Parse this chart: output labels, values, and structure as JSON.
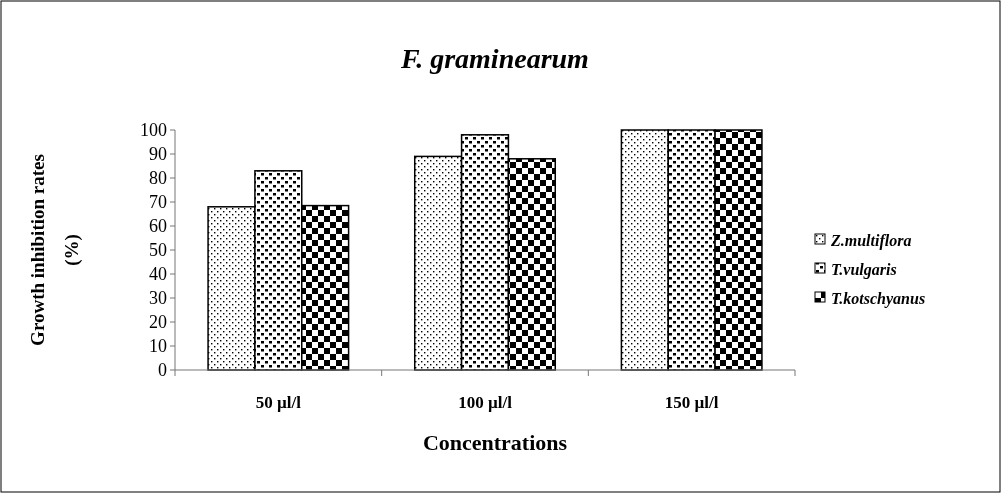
{
  "chart_data": {
    "type": "bar",
    "title": "F. graminearum",
    "xlabel": "Concentrations",
    "ylabel": "Growth inhibition rates (%)",
    "categories": [
      "50 µl/l",
      "100 µl/l",
      "150 µl/l"
    ],
    "series": [
      {
        "name": "Z.multiflora",
        "color": "#000000",
        "values": [
          68,
          89,
          100
        ]
      },
      {
        "name": "T.vulgaris",
        "color": "#000000",
        "values": [
          83,
          98,
          100
        ]
      },
      {
        "name": "T.kotschyanus",
        "color": "#000000",
        "values": [
          68.5,
          88,
          100
        ]
      }
    ],
    "ylim": [
      0,
      100
    ],
    "yticks": [
      0,
      10,
      20,
      30,
      40,
      50,
      60,
      70,
      80,
      90,
      100
    ],
    "grid": false,
    "legend": "right"
  }
}
